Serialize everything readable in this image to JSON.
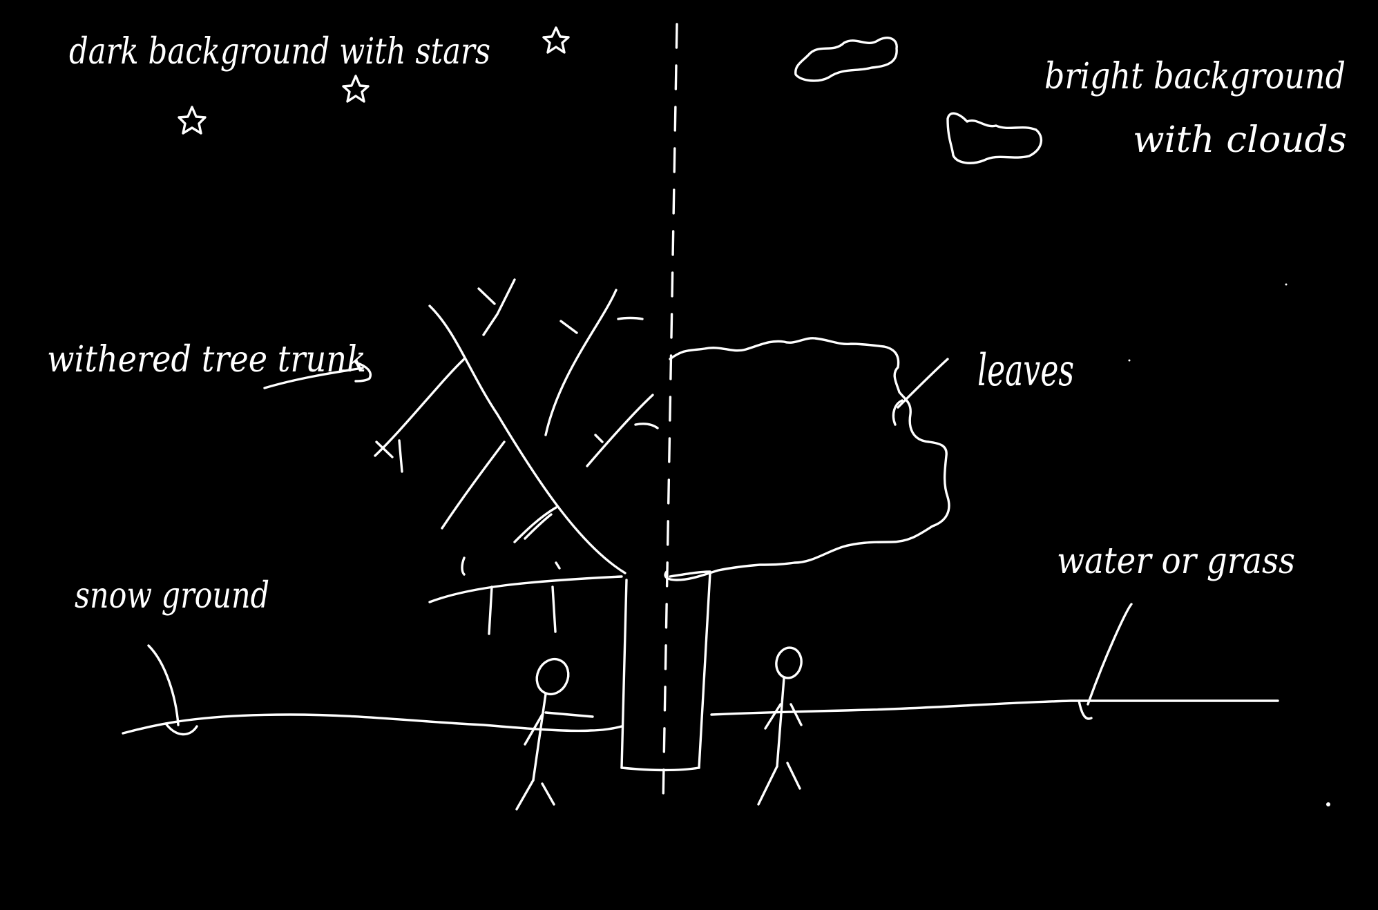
{
  "drawing": {
    "background_color": "#000000",
    "ink_color": "#ffffff",
    "labels": {
      "dark_background": "dark background with stars",
      "bright_background": "bright background",
      "with_clouds": "with clouds",
      "withered_tree_trunk": "withered tree trunk",
      "leaves": "leaves",
      "snow_ground": "snow ground",
      "water_or_grass": "water or grass"
    }
  }
}
